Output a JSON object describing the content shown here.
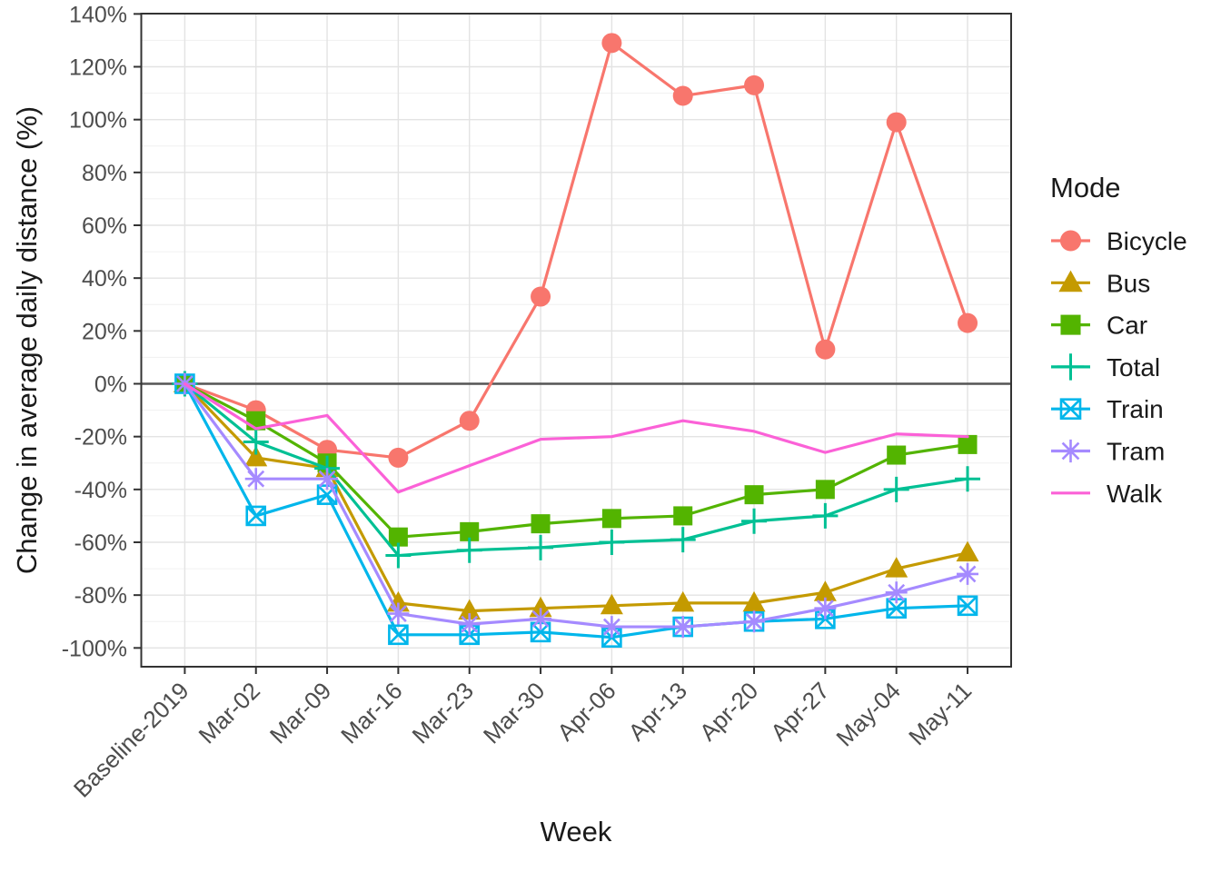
{
  "chart_data": {
    "type": "line",
    "title": "",
    "xlabel": "Week",
    "ylabel": "Change in average daily distance (%)",
    "legend_title": "Mode",
    "legend_position": "right",
    "grid": true,
    "zero_line": true,
    "ylim": [
      -100,
      140
    ],
    "y_ticks": [
      {
        "value": 140,
        "label": "140%"
      },
      {
        "value": 120,
        "label": "120%"
      },
      {
        "value": 100,
        "label": "100%"
      },
      {
        "value": 80,
        "label": "80%"
      },
      {
        "value": 60,
        "label": "60%"
      },
      {
        "value": 40,
        "label": "40%"
      },
      {
        "value": 20,
        "label": "20%"
      },
      {
        "value": 0,
        "label": "0%"
      },
      {
        "value": -20,
        "label": "-20%"
      },
      {
        "value": -40,
        "label": "-40%"
      },
      {
        "value": -60,
        "label": "-60%"
      },
      {
        "value": -80,
        "label": "-80%"
      },
      {
        "value": -100,
        "label": "-100%"
      }
    ],
    "categories": [
      "Baseline-2019",
      "Mar-02",
      "Mar-09",
      "Mar-16",
      "Mar-23",
      "Mar-30",
      "Apr-06",
      "Apr-13",
      "Apr-20",
      "Apr-27",
      "May-04",
      "May-11"
    ],
    "series": [
      {
        "name": "Bicycle",
        "color": "#F8766D",
        "marker": "circle",
        "values": [
          0,
          -10,
          -25,
          -28,
          -14,
          33,
          129,
          109,
          113,
          13,
          99,
          23
        ]
      },
      {
        "name": "Bus",
        "color": "#C49A00",
        "marker": "triangle",
        "values": [
          0,
          -28,
          -32,
          -83,
          -86,
          -85,
          -84,
          -83,
          -83,
          -79,
          -70,
          -64
        ]
      },
      {
        "name": "Car",
        "color": "#53B400",
        "marker": "square",
        "values": [
          0,
          -14,
          -30,
          -58,
          -56,
          -53,
          -51,
          -50,
          -42,
          -40,
          -27,
          -23
        ]
      },
      {
        "name": "Total",
        "color": "#00C094",
        "marker": "plus",
        "values": [
          0,
          -22,
          -32,
          -65,
          -63,
          -62,
          -60,
          -59,
          -52,
          -50,
          -40,
          -36
        ]
      },
      {
        "name": "Train",
        "color": "#00B6EB",
        "marker": "box-x",
        "values": [
          0,
          -50,
          -42,
          -95,
          -95,
          -94,
          -96,
          -92,
          -90,
          -89,
          -85,
          -84
        ]
      },
      {
        "name": "Tram",
        "color": "#A58AFF",
        "marker": "asterisk",
        "values": [
          0,
          -36,
          -36,
          -87,
          -91,
          -89,
          -92,
          -92,
          -90,
          -85,
          -79,
          -72
        ]
      },
      {
        "name": "Walk",
        "color": "#FB61D7",
        "marker": "none",
        "values": [
          0,
          -17,
          -12,
          -41,
          -31,
          -21,
          -20,
          -14,
          -18,
          -26,
          -19,
          -20
        ]
      }
    ],
    "style_colors": {
      "major_grid": "#E3E3E3",
      "minor_grid": "#F0F0F0",
      "panel_border": "#333333",
      "zero_line": "#555555",
      "tick": "#333333"
    }
  }
}
